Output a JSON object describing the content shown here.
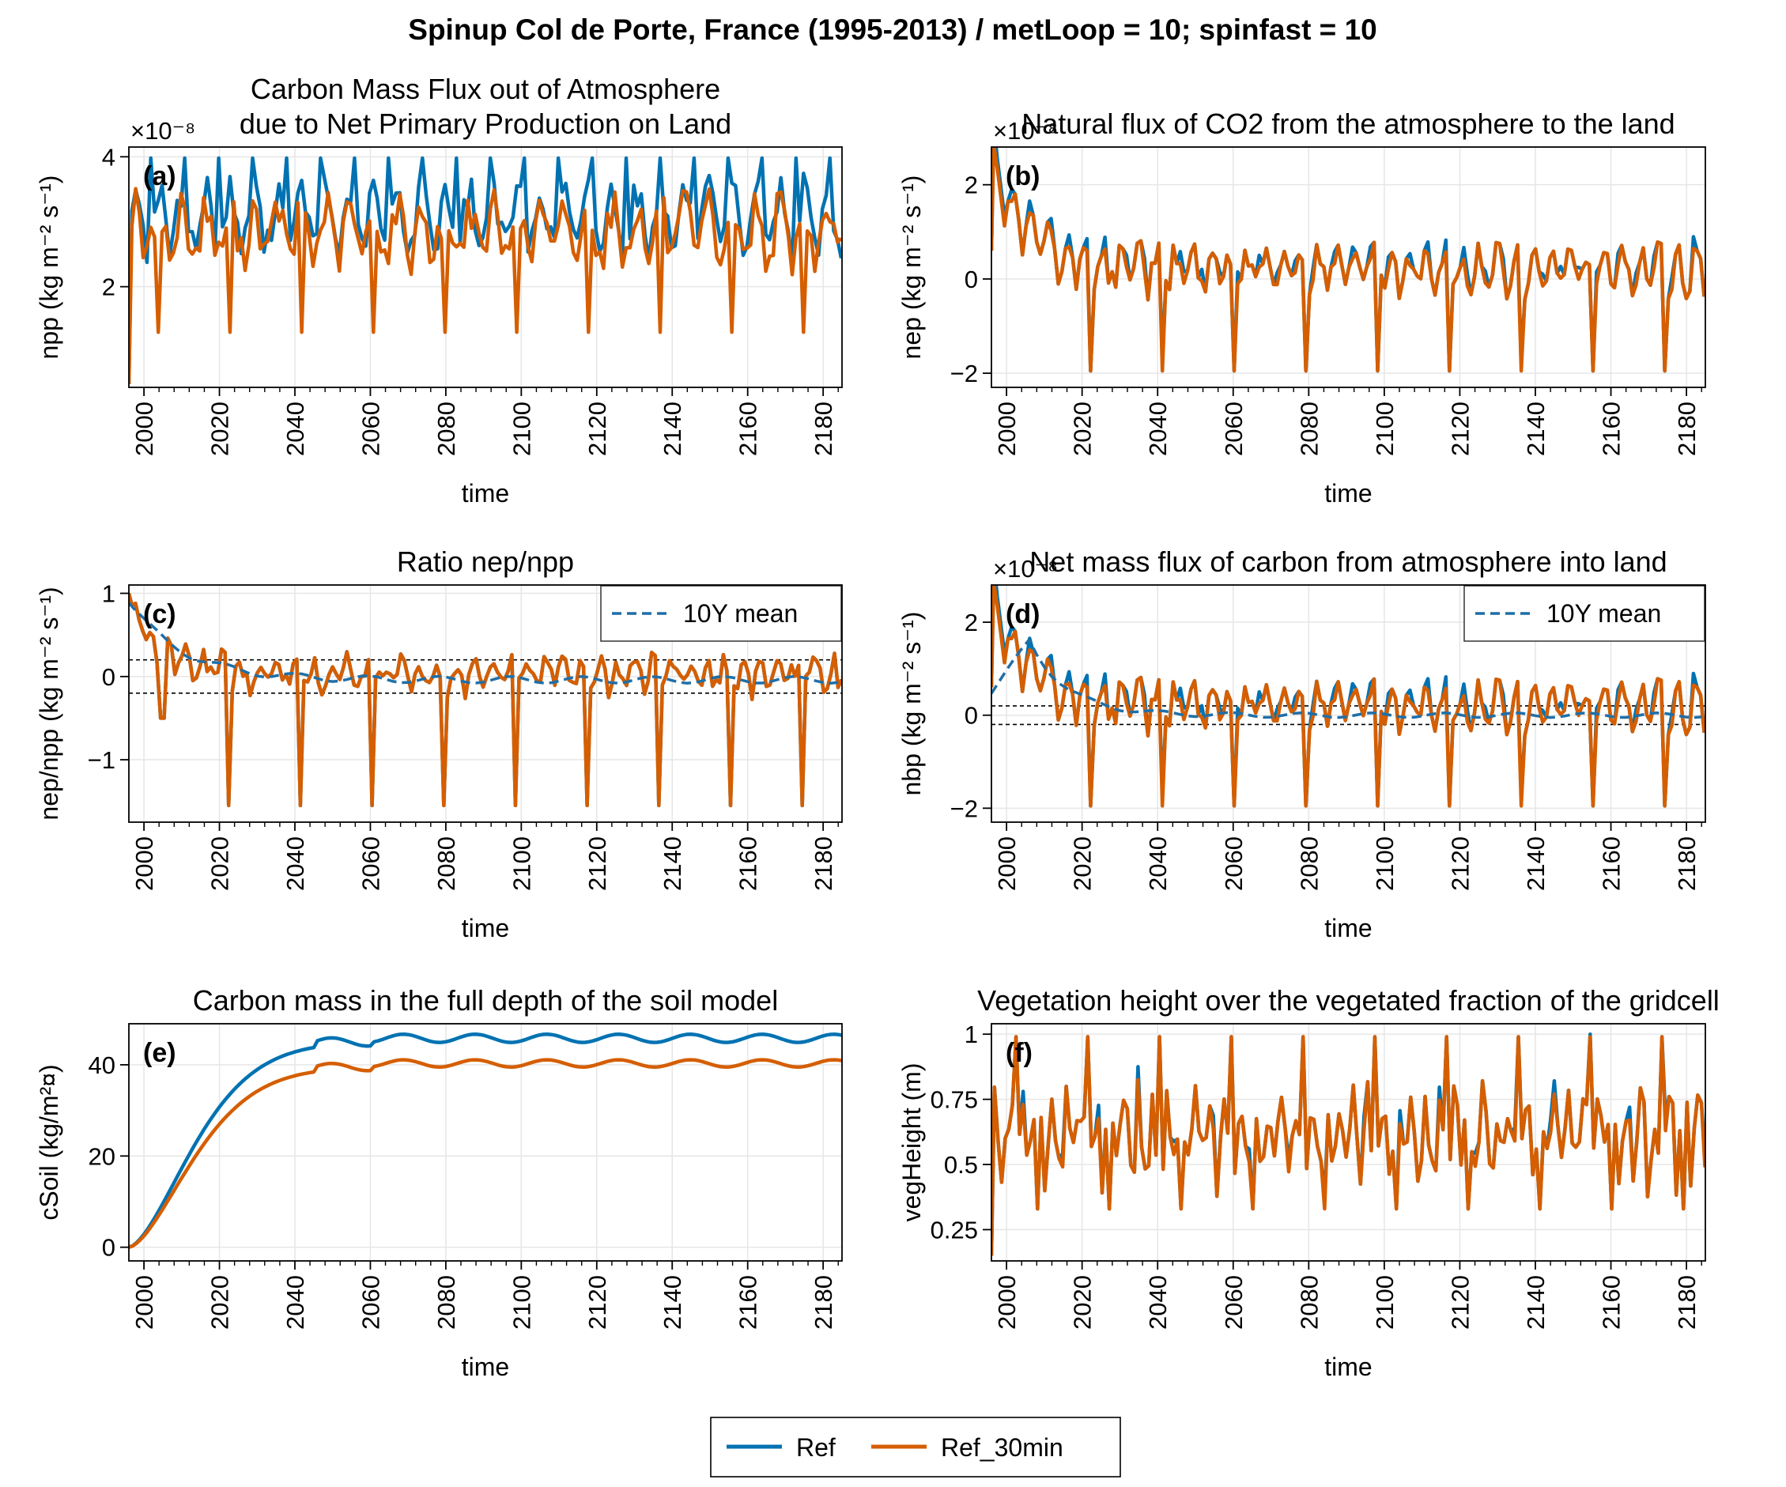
{
  "suptitle": "Spinup Col de Porte, France (1995-2013) / metLoop = 10; spinfast = 10",
  "legend": [
    {
      "label": "Ref",
      "color": "#0072b2"
    },
    {
      "label": "Ref_30min",
      "color": "#d55e00"
    }
  ],
  "colors": {
    "ref": "#0072b2",
    "ref30": "#d55e00",
    "mean": "#1f6fa8",
    "grid": "#e6e6e6",
    "threshold": "#000000"
  },
  "chart_data": [
    {
      "id": "a",
      "type": "line",
      "panel_label": "(a)",
      "title": [
        "Carbon Mass Flux out of Atmosphere",
        "due to Net Primary Production on Land"
      ],
      "xlabel": "time",
      "ylabel": "npp (kg m⁻² s⁻¹)",
      "offset_label": "×10⁻⁸",
      "xlim": [
        1996,
        2185
      ],
      "ylim": [
        0.45,
        4.15
      ],
      "xticks": [
        2000,
        2020,
        2040,
        2060,
        2080,
        2100,
        2120,
        2140,
        2160,
        2180
      ],
      "yticks": [
        2,
        4
      ],
      "ytick_labels": [
        "2",
        "4"
      ],
      "gen": {
        "kind": "npp",
        "period": 19,
        "years": 190
      },
      "series": [
        {
          "name": "Ref",
          "color": "#0072b2",
          "values_summary": "seasonal cycle 2.6-4.0 repeating every ~19 years, initial value 0.5"
        },
        {
          "name": "Ref_30min",
          "color": "#d55e00",
          "values_summary": "seasonal cycle 1.3-3.6 repeating every ~19 years, initial value 0.5"
        }
      ]
    },
    {
      "id": "b",
      "type": "line",
      "panel_label": "(b)",
      "title": [
        "Natural flux of CO2 from the atmosphere to the land"
      ],
      "xlabel": "time",
      "ylabel": "nep (kg m⁻² s⁻¹)",
      "offset_label": "×10⁻⁸",
      "xlim": [
        1996,
        2185
      ],
      "ylim": [
        -2.3,
        2.8
      ],
      "xticks": [
        2000,
        2020,
        2040,
        2060,
        2080,
        2100,
        2120,
        2140,
        2160,
        2180
      ],
      "yticks": [
        -2,
        0,
        2
      ],
      "ytick_labels": [
        "−2",
        "0",
        "2"
      ],
      "gen": {
        "kind": "nep"
      },
      "series": [
        {
          "name": "Ref",
          "color": "#0072b2",
          "values_summary": "starts ~2.5, decays to oscillation between -2.0 and 0.8"
        },
        {
          "name": "Ref_30min",
          "color": "#d55e00",
          "values_summary": "starts ~2.3, decays to oscillation between -2.0 and 0.8"
        }
      ]
    },
    {
      "id": "c",
      "type": "line",
      "panel_label": "(c)",
      "title": [
        "Ratio nep/npp"
      ],
      "xlabel": "time",
      "ylabel": "nep/npp (kg m⁻² s⁻¹)",
      "offset_label": "",
      "xlim": [
        1996,
        2185
      ],
      "ylim": [
        -1.75,
        1.1
      ],
      "xticks": [
        2000,
        2020,
        2040,
        2060,
        2080,
        2100,
        2120,
        2140,
        2160,
        2180
      ],
      "yticks": [
        -1,
        0,
        1
      ],
      "ytick_labels": [
        "−1",
        "0",
        "1"
      ],
      "hlines": [
        0.2,
        -0.2
      ],
      "mean_label": "10Y mean",
      "gen": {
        "kind": "ratio"
      },
      "series": [
        {
          "name": "Ref",
          "color": "#0072b2",
          "values_summary": "starts 1.0, decays to oscillation between -1.6 and 0.25"
        },
        {
          "name": "Ref_30min",
          "color": "#d55e00",
          "values_summary": "starts 1.0, decays to oscillation between -1.6 and 0.25"
        },
        {
          "name": "10Y mean",
          "color": "#1f6fa8",
          "values_summary": "smooth decay from 1.0 to about -0.05"
        }
      ]
    },
    {
      "id": "d",
      "type": "line",
      "panel_label": "(d)",
      "title": [
        "Net mass flux of carbon from atmosphere into land"
      ],
      "xlabel": "time",
      "ylabel": "nbp (kg m⁻² s⁻¹)",
      "offset_label": "×10⁻⁸",
      "xlim": [
        1996,
        2185
      ],
      "ylim": [
        -2.3,
        2.8
      ],
      "xticks": [
        2000,
        2020,
        2040,
        2060,
        2080,
        2100,
        2120,
        2140,
        2160,
        2180
      ],
      "yticks": [
        -2,
        0,
        2
      ],
      "ytick_labels": [
        "−2",
        "0",
        "2"
      ],
      "hlines": [
        0.2,
        -0.2
      ],
      "mean_label": "10Y mean",
      "gen": {
        "kind": "nep"
      },
      "series": [
        {
          "name": "Ref",
          "color": "#0072b2",
          "values_summary": "starts ~2.5, decays to oscillation between -2.0 and 0.8"
        },
        {
          "name": "Ref_30min",
          "color": "#d55e00",
          "values_summary": "starts ~2.3, decays to oscillation between -2.0 and 0.8"
        },
        {
          "name": "10Y mean",
          "color": "#1f6fa8",
          "values_summary": "rises from 0.5 to 1.6 near 2006, then decays to ~0"
        }
      ]
    },
    {
      "id": "e",
      "type": "line",
      "panel_label": "(e)",
      "title": [
        "Carbon mass in the full depth of the soil model"
      ],
      "xlabel": "time",
      "ylabel": "cSoil (kg/m²¤)",
      "offset_label": "",
      "xlim": [
        1996,
        2185
      ],
      "ylim": [
        -3,
        49
      ],
      "xticks": [
        2000,
        2020,
        2040,
        2060,
        2080,
        2100,
        2120,
        2140,
        2160,
        2180
      ],
      "yticks": [
        0,
        20,
        40
      ],
      "ytick_labels": [
        "0",
        "20",
        "40"
      ],
      "gen": {
        "kind": "csoil"
      },
      "series": [
        {
          "name": "Ref",
          "color": "#0072b2",
          "values_summary": "rises from 0 to ~45 by 2060, plateau ~46-47"
        },
        {
          "name": "Ref_30min",
          "color": "#d55e00",
          "values_summary": "rises from 0 to ~40 by 2060, plateau ~40-41"
        }
      ]
    },
    {
      "id": "f",
      "type": "line",
      "panel_label": "(f)",
      "title": [
        "Vegetation height over the vegetated fraction of the gridcell"
      ],
      "xlabel": "time",
      "ylabel": "vegHeight (m)",
      "offset_label": "",
      "xlim": [
        1996,
        2185
      ],
      "ylim": [
        0.13,
        1.04
      ],
      "xticks": [
        2000,
        2020,
        2040,
        2060,
        2080,
        2100,
        2120,
        2140,
        2160,
        2180
      ],
      "yticks": [
        0.25,
        0.5,
        0.75,
        1.0
      ],
      "ytick_labels": [
        "0.25",
        "0.5",
        "0.75",
        "1"
      ],
      "gen": {
        "kind": "veg"
      },
      "series": [
        {
          "name": "Ref",
          "color": "#0072b2",
          "values_summary": "seasonal cycle 0.32-1.0, initial 0.15"
        },
        {
          "name": "Ref_30min",
          "color": "#d55e00",
          "values_summary": "seasonal cycle 0.32-1.0, initial 0.15"
        }
      ]
    }
  ]
}
